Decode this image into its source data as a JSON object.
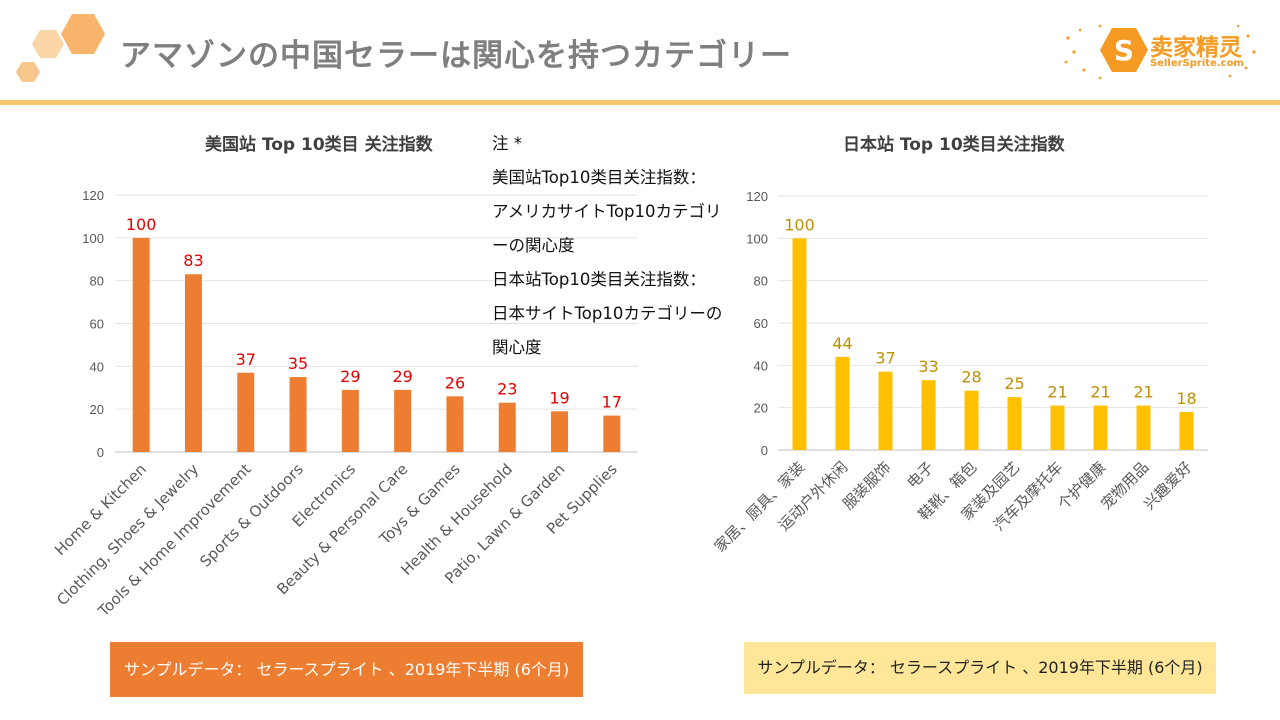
{
  "header": {
    "title": "アマゾンの中国セラーは関心を持つカテゴリー",
    "logo_cn": "卖家精灵",
    "logo_en": "SellerSprite.com"
  },
  "note": {
    "lines": [
      "注 *",
      "美国站Top10类目关注指数：",
      "アメリカサイトTop10カテゴリ",
      "ーの関心度",
      "日本站Top10类目关注指数：",
      "日本サイトTop10カテゴリーの",
      "関心度"
    ]
  },
  "sources": {
    "us": "サンプルデータ：  セラースプライト 、2019年下半期 (6个月)",
    "jp": "サンプルデータ：  セラースプライト 、2019年下半期 (6个月)"
  },
  "colors": {
    "us_bar": "#ed7d31",
    "us_label": "#e60000",
    "jp_bar": "#ffc000",
    "jp_label": "#bf9000"
  },
  "chart_data": [
    {
      "type": "bar",
      "title": "美国站 Top 10类目 关注指数",
      "categories": [
        "Home & Kitchen",
        "Clothing, Shoes & Jewelry",
        "Tools & Home Improvement",
        "Sports & Outdoors",
        "Electronics",
        "Beauty & Personal Care",
        "Toys & Games",
        "Health & Household",
        "Patio, Lawn & Garden",
        "Pet Supplies"
      ],
      "values": [
        100,
        83,
        37,
        35,
        29,
        29,
        26,
        23,
        19,
        17
      ],
      "ylim": [
        0,
        120
      ],
      "yticks": [
        0,
        20,
        40,
        60,
        80,
        100,
        120
      ],
      "grid": true,
      "xlabel": "",
      "ylabel": ""
    },
    {
      "type": "bar",
      "title": "日本站 Top 10类目关注指数",
      "categories": [
        "家居、厨具、家装",
        "运动户外休闲",
        "服装服饰",
        "电子",
        "鞋靴、箱包",
        "家装及园艺",
        "汽车及摩托车",
        "个护健康",
        "宠物用品",
        "兴趣爱好"
      ],
      "values": [
        100,
        44,
        37,
        33,
        28,
        25,
        21,
        21,
        21,
        18
      ],
      "ylim": [
        0,
        120
      ],
      "yticks": [
        0,
        20,
        40,
        60,
        80,
        100,
        120
      ],
      "grid": true,
      "xlabel": "",
      "ylabel": ""
    }
  ]
}
